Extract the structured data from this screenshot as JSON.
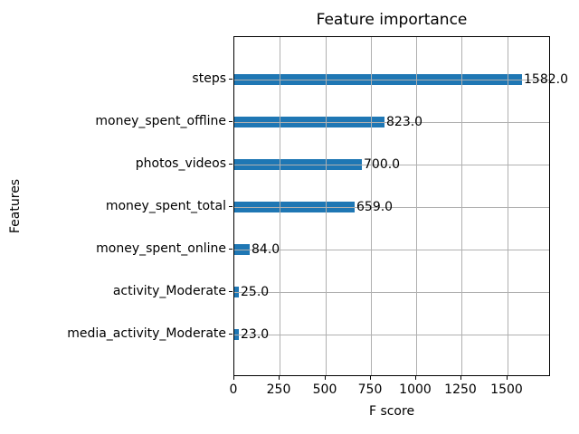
{
  "chart_data": {
    "type": "bar",
    "orientation": "horizontal",
    "title": "Feature importance",
    "xlabel": "F score",
    "ylabel": "Features",
    "categories": [
      "steps",
      "money_spent_offline",
      "photos_videos",
      "money_spent_total",
      "money_spent_online",
      "activity_Moderate",
      "media_activity_Moderate"
    ],
    "values": [
      1582,
      823,
      700,
      659,
      84,
      25,
      23
    ],
    "value_labels": [
      "1582.0",
      "823.0",
      "700.0",
      "659.0",
      "84.0",
      "25.0",
      "23.0"
    ],
    "x_ticks": [
      0,
      250,
      500,
      750,
      1000,
      1250,
      1500
    ],
    "xlim": [
      0,
      1740
    ],
    "grid": true,
    "grid_over_bars": true,
    "legend": "none",
    "bar_color": "#1f77b4",
    "grid_color": "#b0b0b0",
    "text_color": "#000000",
    "background_color": "#ffffff"
  }
}
